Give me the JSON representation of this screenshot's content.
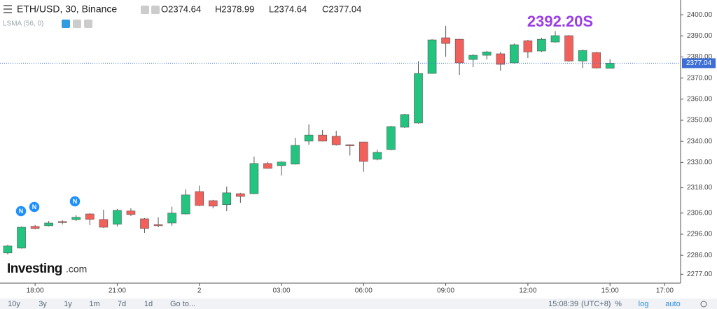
{
  "header": {
    "symbol": "ETH/USD, 30, Binance",
    "open": "O2374.64",
    "high": "H2378.99",
    "low": "L2374.64",
    "close": "C2377.04",
    "indicator": "LSMA (56, 0)"
  },
  "logo": {
    "brand": "Investing",
    "suffix": ".com"
  },
  "toolbar": {
    "ranges": [
      "10y",
      "3y",
      "1y",
      "1m",
      "7d",
      "1d"
    ],
    "goto": "Go to...",
    "time": "15:08:39",
    "timezone": "(UTC+8)",
    "percent": "%",
    "log": "log",
    "auto": "auto"
  },
  "news_markers": [
    "N",
    "N",
    "N"
  ],
  "chart_data": {
    "type": "candlestick",
    "categories": [
      null,
      null,
      "18:00",
      null,
      null,
      null,
      null,
      null,
      "21:00",
      null,
      null,
      null,
      null,
      null,
      "2",
      null,
      null,
      null,
      null,
      null,
      "03:00",
      null,
      null,
      null,
      null,
      null,
      "06:00",
      null,
      null,
      null,
      null,
      null,
      "09:00",
      null,
      null,
      null,
      null,
      null,
      "12:00",
      null,
      null,
      null,
      null,
      null,
      "15:00",
      null,
      null,
      null,
      "17:00"
    ],
    "open": [
      2287.1,
      2289.4,
      2299.7,
      2300.0,
      2302.0,
      2302.9,
      2305.6,
      2303.0,
      2300.7,
      2307.0,
      2303.3,
      2300.5,
      2301.3,
      2305.6,
      2316.2,
      2311.9,
      2310.0,
      2315.2,
      2315.2,
      2329.5,
      2328.5,
      2329.2,
      2340.1,
      2343.0,
      2342.4,
      2338.4,
      2339.7,
      2331.5,
      2336.1,
      2346.7,
      2348.7,
      2372.2,
      2389.1,
      2388.4,
      2378.8,
      2380.8,
      2381.5,
      2377.2,
      2387.7,
      2382.8,
      2387.1,
      2390.1,
      2378.1,
      2382.1,
      2374.64,
      null,
      null,
      null,
      null
    ],
    "high": [
      2291.0,
      2299.6,
      2300.4,
      2302.3,
      2302.6,
      2305.0,
      2306.0,
      2307.6,
      2308.0,
      2308.3,
      2303.6,
      2304.0,
      2309.0,
      2317.3,
      2319.0,
      2312.3,
      2318.6,
      2315.6,
      2332.8,
      2330.2,
      2330.5,
      2341.7,
      2348.0,
      2345.4,
      2345.0,
      2338.6,
      2339.8,
      2336.0,
      2347.4,
      2353.0,
      2378.0,
      2388.4,
      2394.8,
      2388.6,
      2381.3,
      2382.9,
      2382.4,
      2386.4,
      2388.1,
      2389.1,
      2392.2,
      2390.4,
      2383.5,
      2382.4,
      2378.99,
      null,
      null,
      null,
      null
    ],
    "low": [
      2286.4,
      2289.2,
      2298.3,
      2299.7,
      2300.6,
      2302.3,
      2300.3,
      2299.0,
      2299.7,
      2304.6,
      2296.6,
      2299.3,
      2300.0,
      2305.3,
      2309.3,
      2308.3,
      2306.9,
      2310.9,
      2315.0,
      2327.0,
      2323.8,
      2329.0,
      2338.4,
      2340.0,
      2338.0,
      2333.3,
      2325.6,
      2331.0,
      2335.8,
      2346.4,
      2348.4,
      2372.0,
      2380.1,
      2371.5,
      2375.2,
      2378.8,
      2373.5,
      2376.9,
      2379.5,
      2382.4,
      2386.8,
      2377.8,
      2374.8,
      2374.5,
      2374.64,
      null,
      null,
      null,
      null
    ],
    "close": [
      2290.4,
      2299.3,
      2298.7,
      2301.3,
      2301.7,
      2304.0,
      2303.0,
      2299.3,
      2307.3,
      2305.3,
      2298.7,
      2300.3,
      2306.0,
      2314.6,
      2309.6,
      2309.3,
      2315.6,
      2313.9,
      2329.5,
      2327.2,
      2330.2,
      2338.1,
      2343.0,
      2340.1,
      2338.4,
      2338.1,
      2330.5,
      2334.8,
      2347.0,
      2352.7,
      2372.2,
      2388.1,
      2386.4,
      2377.2,
      2380.8,
      2382.4,
      2376.5,
      2385.8,
      2382.4,
      2388.4,
      2390.1,
      2378.1,
      2383.1,
      2374.8,
      2377.04,
      null,
      null,
      null,
      null
    ],
    "up_color": "#22c47f",
    "down_color": "#f2605b",
    "wick_color": "#555555",
    "ylim": [
      2272.8,
      2407
    ],
    "yticks": [
      {
        "value": 2400,
        "label": "2400.00"
      },
      {
        "value": 2390,
        "label": "2390.00"
      },
      {
        "value": 2380,
        "label": "2380.00"
      },
      {
        "value": 2370,
        "label": "2370.00"
      },
      {
        "value": 2360,
        "label": "2360.00"
      },
      {
        "value": 2350,
        "label": "2350.00"
      },
      {
        "value": 2340,
        "label": "2340.00"
      },
      {
        "value": 2330,
        "label": "2330.00"
      },
      {
        "value": 2318,
        "label": "2318.00"
      },
      {
        "value": 2306,
        "label": "2306.00"
      },
      {
        "value": 2296,
        "label": "2296.00"
      },
      {
        "value": 2286,
        "label": "2286.00"
      },
      {
        "value": 2277,
        "label": "2277.00"
      }
    ],
    "price_line": 2377.04,
    "price_line_color": "#3d6fd6",
    "annotation": "2392.20S",
    "annotation_color": "#9b3ee6"
  }
}
